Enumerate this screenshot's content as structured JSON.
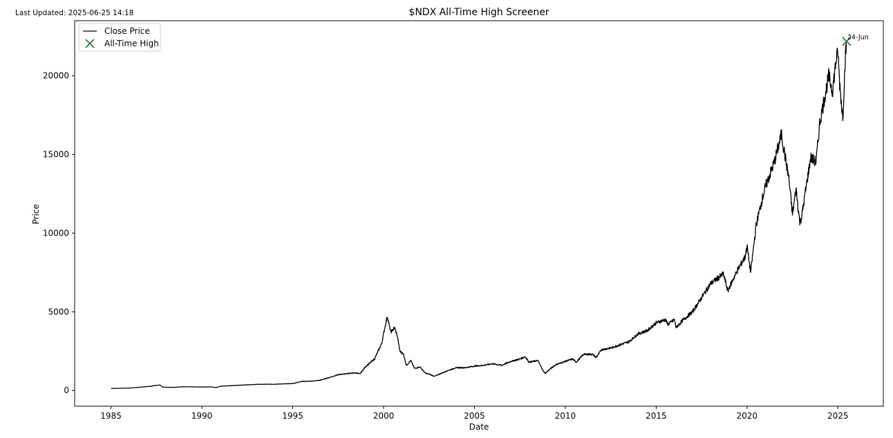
{
  "last_updated": "Last Updated: 2025-06-25 14:18",
  "chart_data": {
    "type": "line",
    "title": "$NDX All-Time High Screener",
    "xlabel": "Date",
    "ylabel": "Price",
    "xlim": [
      1983.0,
      2027.5
    ],
    "ylim": [
      -1000,
      23500
    ],
    "xticks": [
      1985,
      1990,
      1995,
      2000,
      2005,
      2010,
      2015,
      2020,
      2025
    ],
    "yticks": [
      0,
      5000,
      10000,
      15000,
      20000
    ],
    "grid": false,
    "legend": {
      "placement": "top-left",
      "entries": [
        "Close Price",
        "All-Time High"
      ]
    },
    "series": [
      {
        "name": "Close Price",
        "color": "#000000",
        "x": [
          1985.0,
          1986.0,
          1987.0,
          1987.7,
          1987.85,
          1988.5,
          1989.0,
          1990.0,
          1990.5,
          1990.8,
          1991.0,
          1992.0,
          1993.0,
          1994.0,
          1995.0,
          1995.5,
          1996.0,
          1996.5,
          1997.0,
          1997.5,
          1998.0,
          1998.5,
          1998.7,
          1999.0,
          1999.5,
          1999.9,
          2000.05,
          2000.2,
          2000.4,
          2000.6,
          2000.75,
          2000.9,
          2001.1,
          2001.25,
          2001.5,
          2001.7,
          2002.0,
          2002.3,
          2002.6,
          2002.8,
          2003.0,
          2003.5,
          2004.0,
          2004.5,
          2005.0,
          2005.5,
          2006.0,
          2006.5,
          2007.0,
          2007.5,
          2007.8,
          2008.0,
          2008.5,
          2008.8,
          2008.9,
          2009.2,
          2009.5,
          2010.0,
          2010.4,
          2010.6,
          2011.0,
          2011.5,
          2011.7,
          2012.0,
          2012.5,
          2013.0,
          2013.5,
          2014.0,
          2014.5,
          2015.0,
          2015.5,
          2015.65,
          2016.0,
          2016.1,
          2016.5,
          2017.0,
          2017.5,
          2018.0,
          2018.7,
          2018.95,
          2019.0,
          2019.5,
          2019.9,
          2020.0,
          2020.2,
          2020.5,
          2020.8,
          2021.0,
          2021.5,
          2021.9,
          2022.0,
          2022.3,
          2022.5,
          2022.7,
          2022.9,
          2023.0,
          2023.5,
          2023.8,
          2024.0,
          2024.5,
          2024.7,
          2024.9,
          2025.0,
          2025.1,
          2025.27,
          2025.4,
          2025.48
        ],
        "y": [
          130,
          150,
          250,
          350,
          210,
          200,
          240,
          220,
          230,
          180,
          270,
          330,
          390,
          400,
          440,
          580,
          590,
          650,
          820,
          1000,
          1080,
          1120,
          1050,
          1500,
          2000,
          3000,
          3900,
          4700,
          3700,
          4000,
          3500,
          2500,
          2300,
          1600,
          1900,
          1400,
          1500,
          1100,
          1000,
          900,
          1000,
          1250,
          1450,
          1450,
          1550,
          1600,
          1700,
          1600,
          1850,
          2000,
          2150,
          1800,
          1900,
          1200,
          1100,
          1400,
          1650,
          1850,
          2000,
          1800,
          2300,
          2300,
          2100,
          2600,
          2700,
          2900,
          3100,
          3600,
          3800,
          4300,
          4500,
          4200,
          4500,
          4000,
          4500,
          5000,
          5900,
          6800,
          7400,
          6300,
          6500,
          7700,
          8500,
          9200,
          7500,
          10500,
          12000,
          12900,
          14500,
          16300,
          15500,
          13500,
          11200,
          12800,
          10700,
          11000,
          14800,
          14500,
          17000,
          20000,
          19000,
          21000,
          21500,
          19500,
          17300,
          21000,
          22190
        ]
      },
      {
        "name": "All-Time High",
        "type": "scatter",
        "marker": "x",
        "color": "#2e7d32",
        "x": [
          2025.48
        ],
        "y": [
          22190
        ],
        "labels": [
          "24-Jun"
        ]
      }
    ]
  }
}
